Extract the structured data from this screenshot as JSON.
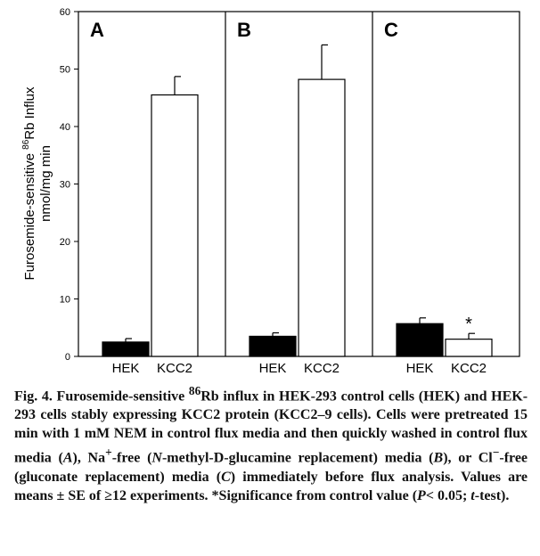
{
  "chart_data": {
    "type": "bar",
    "ylabel_line1": "Furosemide-sensitive ",
    "ylabel_sup": "86",
    "ylabel_line1_rest": "Rb Influx",
    "ylabel_line2": "nmol/mg min",
    "ylim": [
      0,
      60
    ],
    "yticks": [
      "0",
      "10",
      "20",
      "30",
      "40",
      "50",
      "60"
    ],
    "categories": [
      "HEK",
      "KCC2"
    ],
    "colors": {
      "HEK": "#000000",
      "KCC2": "#ffffff"
    },
    "panels": [
      {
        "label": "A",
        "values": [
          2.5,
          45.5
        ],
        "errors": [
          0.6,
          3.2
        ],
        "significance": [
          "",
          ""
        ]
      },
      {
        "label": "B",
        "values": [
          3.5,
          48.2
        ],
        "errors": [
          0.6,
          6.0
        ],
        "significance": [
          "",
          ""
        ]
      },
      {
        "label": "C",
        "values": [
          5.7,
          3.0
        ],
        "errors": [
          1.0,
          1.0
        ],
        "significance": [
          "",
          "*"
        ]
      }
    ]
  },
  "caption": {
    "fig": "Fig. 4.",
    "p1": " Furosemide-sensitive ",
    "sup1": "86",
    "p2": "Rb influx in HEK-293 control cells (HEK) and HEK-293 cells stably expressing KCC2 protein (KCC2–9 cells). Cells were pretreated 15 min with 1 mM NEM in control flux media and then quickly washed in control flux media (",
    "a": "A",
    "p3": "), Na",
    "sup2": "+",
    "p4": "-free (",
    "nmethyl": "N",
    "p5": "-methyl-",
    "d": "D",
    "p6": "-glucamine replacement) media (",
    "b": "B",
    "p7": "), or Cl",
    "sup3": "−",
    "p8": "-free (gluconate replacement) media (",
    "c": "C",
    "p9": ") immediately before flux analysis. Values are means ± SE of ≥12 experiments. *Significance from control value (",
    "pval": "P",
    "p10": "< 0.05; ",
    "ttest": "t",
    "p11": "-test)."
  }
}
